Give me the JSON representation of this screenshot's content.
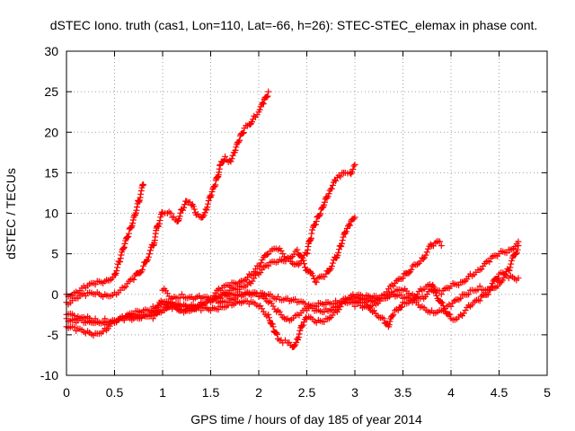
{
  "chart_data": {
    "type": "scatter",
    "title": "dSTEC Iono. truth (cas1, Lon=110, Lat=-66, h=26): STEC-STEC_elemax in phase cont.",
    "xlabel": "GPS time / hours of day 185 of year 2014",
    "ylabel": "dSTEC  / TECUs",
    "xlim": [
      0,
      5
    ],
    "ylim": [
      -10,
      30
    ],
    "xticks": [
      0,
      0.5,
      1,
      1.5,
      2,
      2.5,
      3,
      3.5,
      4,
      4.5,
      5
    ],
    "xtick_labels": [
      "0",
      "0.5",
      "1",
      "1.5",
      "2",
      "2.5",
      "3",
      "3.5",
      "4",
      "4.5",
      "5"
    ],
    "yticks": [
      -10,
      -5,
      0,
      5,
      10,
      15,
      20,
      25,
      30
    ],
    "ytick_labels": [
      "-10",
      "-5",
      "0",
      "5",
      "10",
      "15",
      "20",
      "25",
      "30"
    ],
    "grid": true,
    "marker": "+",
    "color": "#ff0000",
    "series": [
      {
        "x": [
          0.0,
          0.1,
          0.2,
          0.3,
          0.4,
          0.5,
          0.55,
          0.6,
          0.65,
          0.7,
          0.75,
          0.8
        ],
        "y": [
          0.0,
          0.3,
          0.8,
          1.2,
          1.6,
          2.5,
          4.0,
          5.8,
          7.5,
          9.5,
          11.5,
          13.5
        ]
      },
      {
        "x": [
          0.0,
          0.1,
          0.2,
          0.3,
          0.4,
          0.5,
          0.6,
          0.7,
          0.8,
          0.9,
          0.95,
          1.0,
          1.05,
          1.1,
          1.15,
          1.2,
          1.25,
          1.3,
          1.35,
          1.4,
          1.45,
          1.5,
          1.55,
          1.6,
          1.65,
          1.7,
          1.75,
          1.8,
          1.85,
          1.9,
          1.95,
          2.0,
          2.05,
          2.1
        ],
        "y": [
          -1.0,
          -0.5,
          -0.2,
          0.0,
          0.0,
          0.2,
          0.8,
          1.8,
          3.5,
          6.0,
          8.5,
          10.0,
          10.0,
          9.5,
          9.0,
          10.5,
          11.5,
          11.0,
          9.8,
          9.5,
          10.5,
          12.0,
          13.5,
          16.0,
          17.0,
          16.5,
          17.5,
          19.0,
          20.5,
          21.0,
          22.0,
          22.5,
          23.5,
          25.0
        ]
      },
      {
        "x": [
          0.0,
          0.1,
          0.2,
          0.3,
          0.4,
          0.5,
          0.6,
          0.7,
          0.8,
          0.9,
          1.0,
          1.1,
          1.2,
          1.3,
          1.4,
          1.5,
          1.6,
          1.7,
          1.8,
          1.9,
          2.0,
          2.1,
          2.2,
          2.3,
          2.4,
          2.5,
          2.55,
          2.6,
          2.65,
          2.7,
          2.75,
          2.8,
          2.85,
          2.9,
          2.95,
          3.0
        ],
        "y": [
          -3.0,
          -3.5,
          -3.0,
          -3.5,
          -3.0,
          -3.2,
          -3.0,
          -2.5,
          -2.0,
          -1.5,
          -1.0,
          -1.5,
          -1.5,
          -2.0,
          -1.0,
          -0.5,
          0.5,
          1.0,
          1.5,
          2.5,
          3.5,
          5.0,
          5.5,
          4.5,
          3.8,
          5.0,
          7.5,
          9.0,
          10.5,
          12.0,
          13.0,
          14.0,
          14.5,
          15.0,
          15.0,
          16.0
        ]
      },
      {
        "x": [
          0.0,
          0.1,
          0.2,
          0.3,
          0.4,
          0.5,
          0.6,
          0.7,
          0.8,
          0.9,
          1.0,
          1.1,
          1.2,
          1.3,
          1.4,
          1.5,
          1.6,
          1.7,
          1.8,
          1.9,
          2.0,
          2.1,
          2.2,
          2.3,
          2.4,
          2.5,
          2.6,
          2.7,
          2.8,
          2.85,
          2.9,
          2.95,
          3.0
        ],
        "y": [
          -4.0,
          -4.5,
          -4.8,
          -4.8,
          -4.2,
          -3.5,
          -3.0,
          -2.8,
          -2.5,
          -2.3,
          -2.0,
          -1.8,
          -1.5,
          -1.3,
          -1.0,
          -0.8,
          -0.5,
          0.5,
          1.0,
          1.5,
          2.5,
          3.5,
          4.0,
          4.5,
          5.5,
          3.0,
          1.5,
          2.5,
          4.5,
          6.0,
          7.5,
          8.5,
          9.5
        ]
      },
      {
        "x": [
          0.0,
          0.1,
          0.2,
          0.3,
          0.4,
          0.5,
          0.6,
          0.7,
          0.8,
          0.9,
          1.0,
          1.1,
          1.2,
          1.3,
          1.4,
          1.5,
          1.6,
          1.7,
          1.8,
          1.9,
          2.0,
          2.1,
          2.2,
          2.3,
          2.4,
          2.5,
          2.6,
          2.7,
          2.8,
          2.9,
          3.0,
          3.1,
          3.2,
          3.3,
          3.4,
          3.5,
          3.6,
          3.7,
          3.8,
          3.9,
          4.0,
          4.1,
          4.2,
          4.3,
          4.4,
          4.5,
          4.6,
          4.7
        ],
        "y": [
          -2.5,
          -3.0,
          -3.5,
          -3.0,
          -3.5,
          -3.5,
          -3.2,
          -3.0,
          -2.5,
          -2.0,
          -1.0,
          -1.5,
          -2.0,
          -1.5,
          -1.2,
          -1.0,
          -0.5,
          0.0,
          0.3,
          0.2,
          -0.3,
          -1.0,
          -2.0,
          -3.0,
          -2.5,
          -2.0,
          -1.5,
          -1.0,
          -0.8,
          -0.5,
          -0.3,
          -0.5,
          -0.2,
          -0.2,
          0.0,
          -0.5,
          -1.0,
          -1.5,
          -2.0,
          -2.0,
          -1.5,
          -0.5,
          0.5,
          1.0,
          0.5,
          2.5,
          2.0,
          2.0
        ]
      },
      {
        "x": [
          0.9,
          1.0,
          1.1,
          1.2,
          1.3,
          1.4,
          1.5,
          1.6,
          1.7,
          1.8,
          1.9,
          2.0,
          2.1,
          2.15,
          2.2,
          2.25,
          2.3,
          2.35,
          2.4,
          2.45,
          2.5,
          2.6,
          2.7,
          2.8,
          2.9,
          3.0,
          3.1,
          3.2,
          3.3,
          3.35,
          3.4,
          3.45,
          3.5,
          3.6,
          3.7,
          3.8,
          3.9,
          4.0,
          4.1,
          4.2,
          4.3,
          4.4,
          4.5,
          4.6,
          4.7
        ],
        "y": [
          -3.0,
          -2.0,
          -1.0,
          -2.0,
          -1.5,
          -2.0,
          -2.0,
          -1.5,
          -1.0,
          -1.0,
          -1.2,
          -1.5,
          -2.5,
          -4.0,
          -5.5,
          -6.0,
          -6.0,
          -6.5,
          -5.5,
          -4.0,
          -3.0,
          -3.5,
          -3.0,
          -2.0,
          -1.0,
          -1.5,
          -1.0,
          -2.0,
          -3.0,
          -4.0,
          -2.5,
          -2.0,
          -1.0,
          -0.5,
          0.5,
          1.0,
          -1.0,
          -3.0,
          -2.5,
          -1.5,
          -0.8,
          0.5,
          1.5,
          3.0,
          6.0
        ]
      },
      {
        "x": [
          1.0,
          1.1,
          1.2,
          1.3,
          1.4,
          1.5,
          1.6,
          1.7,
          1.8,
          1.9,
          2.0,
          2.1,
          2.2,
          2.3,
          2.4,
          2.5,
          2.6,
          2.7,
          2.8,
          2.9,
          3.0,
          3.1,
          3.2,
          3.3,
          3.4,
          3.5,
          3.6,
          3.7,
          3.8,
          3.85,
          3.9
        ],
        "y": [
          0.5,
          -0.5,
          0.0,
          -0.3,
          -0.5,
          -0.8,
          -1.0,
          -0.5,
          0.0,
          0.0,
          -0.2,
          0.0,
          -0.3,
          -0.5,
          -1.0,
          -1.5,
          -2.0,
          -1.8,
          -1.5,
          -1.0,
          -0.8,
          -0.5,
          -0.5,
          0.0,
          1.0,
          2.0,
          3.5,
          4.5,
          6.0,
          6.5,
          6.0
        ]
      },
      {
        "x": [
          3.0,
          3.1,
          3.2,
          3.3,
          3.4,
          3.5,
          3.6,
          3.7,
          3.8,
          3.9,
          4.0,
          4.1,
          4.2,
          4.3,
          4.4,
          4.5,
          4.6,
          4.7
        ],
        "y": [
          -1.0,
          -1.5,
          -1.0,
          -0.5,
          0.0,
          0.5,
          0.0,
          -0.3,
          0.5,
          0.0,
          1.0,
          1.5,
          2.5,
          3.0,
          4.0,
          5.0,
          5.5,
          6.5
        ]
      }
    ]
  }
}
